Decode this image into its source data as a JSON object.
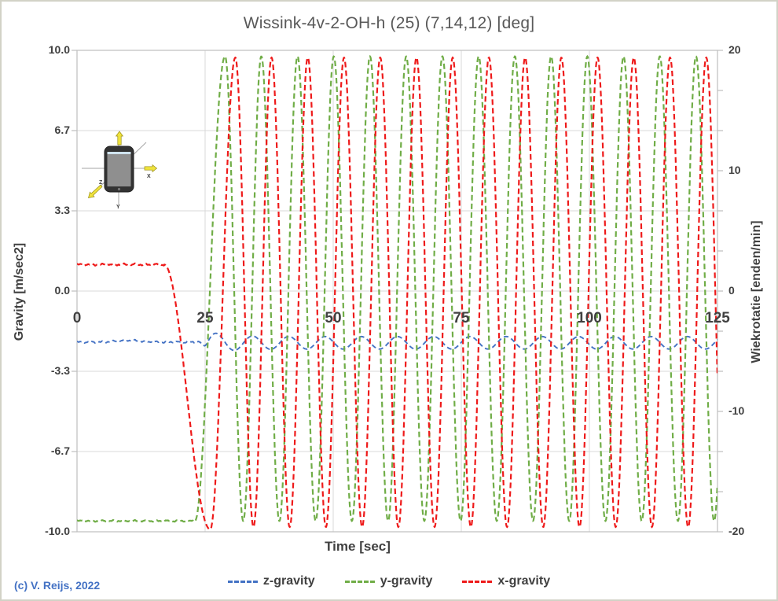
{
  "chart_data": {
    "type": "line",
    "title": "Wissink-4v-2-OH-h (25) (7,14,12) [deg]",
    "xlabel": "Time [sec]",
    "ylabel_left": "Gravity  [m/sec2]",
    "ylabel_right": "Wiekrotatie [enden/min]",
    "x_range": [
      0,
      125
    ],
    "x_ticks": [
      0,
      25,
      50,
      75,
      100,
      125
    ],
    "x_tick_labels": [
      "0",
      "25",
      "50",
      "75",
      "100",
      "125"
    ],
    "y_left_range": [
      -10,
      10
    ],
    "y_left_tick_values": [
      10,
      6.667,
      3.333,
      0,
      -3.333,
      -6.667,
      -10
    ],
    "y_left_tick_labels": [
      "10.0",
      "6.7",
      "3.3",
      "0.0",
      "-3.3",
      "-6.7",
      "-10.0"
    ],
    "y_right_range": [
      -20,
      20
    ],
    "y_right_tick_values": [
      20,
      10,
      0,
      -10,
      -20
    ],
    "y_right_tick_labels": [
      "20",
      "10",
      "0",
      "-10",
      "-20"
    ],
    "y_right_minor_tick_count": 13,
    "grid_color": "#d9d9d9",
    "axis_color": "#bfbfbf",
    "legend_position": "bottom",
    "series": [
      {
        "name": "z-gravity",
        "color": "#4472c4",
        "dash": "6 4",
        "width": 1.9,
        "model": {
          "kind": "envelope",
          "baseline": -2.12,
          "baseline_noise": 0.045,
          "bump_t": 10,
          "bump_w": 3.2,
          "bump_h": 0.07,
          "blend_start": 24,
          "blend_len": 1.6,
          "mid": -2.15,
          "amp": 0.26,
          "amp_extra": 0.3,
          "amp_decay": 4,
          "period": 7.07,
          "peak_time": 27.2
        }
      },
      {
        "name": "y-gravity",
        "color": "#70ad47",
        "dash": "7 4",
        "width": 2.2,
        "model": {
          "kind": "rise",
          "baseline": -9.55,
          "baseline_noise": 0.04,
          "rise_start": 23.0,
          "rise_end": 28.9,
          "mid": 0.1,
          "amp": 9.65,
          "period": 7.07,
          "peak_time": 28.9
        }
      },
      {
        "name": "x-gravity",
        "color": "#ee1a1a",
        "dash": "7 4",
        "width": 2.2,
        "model": {
          "kind": "fallrise",
          "baseline": 1.1,
          "baseline_noise": 0.05,
          "fall_start": 17.0,
          "fall_end": 26.0,
          "fall_value": -9.9,
          "rise_end": 30.9,
          "mid": -0.05,
          "amp": 9.75,
          "period": 7.07,
          "peak_time": 30.9
        }
      }
    ]
  },
  "annotations": {
    "copyright": "(c) V. Reijs, 2022",
    "copyright_color": "#4472c4"
  },
  "inset": {
    "x_label": "X",
    "y_label": "Y",
    "z_label": "Z"
  },
  "layout_colors": {
    "title": "#595959",
    "labels": "#404040",
    "frame": "#d2d2c6"
  }
}
